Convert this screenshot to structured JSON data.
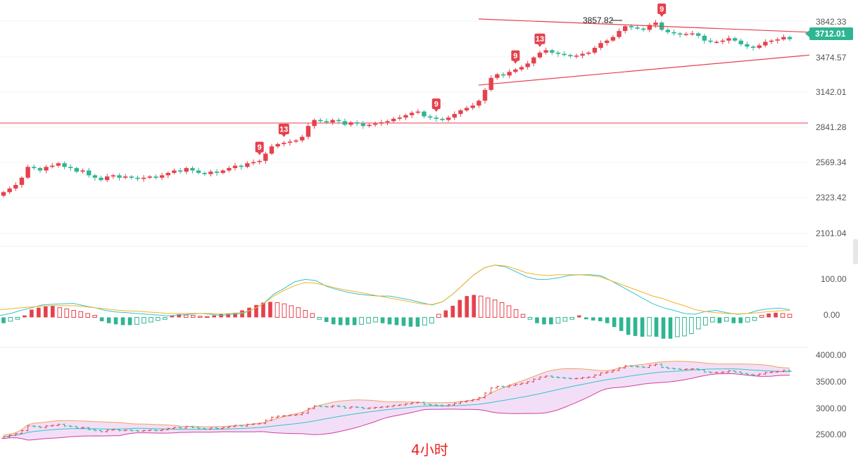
{
  "footer_label": "4小时",
  "colors": {
    "up": "#e5414d",
    "down": "#2fb592",
    "bg": "#ffffff",
    "accent": "#e8221f"
  },
  "chart_data": [
    {
      "type": "candlestick",
      "title": "",
      "price_axis_ticks": [
        "3842.33",
        "3474.57",
        "3142.01",
        "2841.28",
        "2569.34",
        "2323.42",
        "2101.04"
      ],
      "ylim": [
        2050,
        3950
      ],
      "current_price": "3712.01",
      "peak_label": "3857.82",
      "horizontal_level": 2880,
      "triangle": {
        "upper": [
          [
            680,
            3880
          ],
          [
            1150,
            3770
          ]
        ],
        "lower": [
          [
            680,
            3330
          ],
          [
            1150,
            3580
          ]
        ]
      },
      "closes": [
        2440,
        2470,
        2500,
        2560,
        2650,
        2640,
        2620,
        2650,
        2660,
        2680,
        2650,
        2640,
        2610,
        2620,
        2580,
        2560,
        2540,
        2570,
        2580,
        2560,
        2570,
        2560,
        2550,
        2560,
        2570,
        2560,
        2580,
        2600,
        2620,
        2610,
        2640,
        2620,
        2600,
        2590,
        2610,
        2600,
        2620,
        2640,
        2660,
        2650,
        2680,
        2690,
        2700,
        2760,
        2820,
        2840,
        2850,
        2860,
        2870,
        2900,
        2990,
        3040,
        3030,
        3020,
        3040,
        3030,
        3000,
        3020,
        3010,
        2990,
        3000,
        3010,
        3020,
        3030,
        3050,
        3060,
        3080,
        3100,
        3110,
        3070,
        3060,
        3050,
        3040,
        3060,
        3090,
        3120,
        3140,
        3160,
        3200,
        3290,
        3390,
        3420,
        3410,
        3440,
        3460,
        3480,
        3510,
        3560,
        3600,
        3620,
        3600,
        3590,
        3580,
        3570,
        3575,
        3590,
        3600,
        3640,
        3680,
        3700,
        3730,
        3780,
        3820,
        3810,
        3800,
        3790,
        3830,
        3850,
        3790,
        3770,
        3760,
        3750,
        3755,
        3760,
        3740,
        3700,
        3690,
        3690,
        3700,
        3720,
        3700,
        3670,
        3650,
        3640,
        3660,
        3690,
        3700,
        3710,
        3730,
        3712
      ],
      "sequential_count_labels": [
        {
          "index": 42,
          "label": "9",
          "position": "above"
        },
        {
          "index": 46,
          "label": "13",
          "position": "above"
        },
        {
          "index": 71,
          "label": "9",
          "position": "above"
        },
        {
          "index": 84,
          "label": "9",
          "position": "above"
        },
        {
          "index": 88,
          "label": "13",
          "position": "above"
        },
        {
          "index": 108,
          "label": "9",
          "position": "above"
        }
      ]
    },
    {
      "type": "macd",
      "axis_ticks": [
        "100.00",
        "0.00"
      ],
      "ylim": [
        -70,
        175
      ],
      "histogram": [
        -15,
        -10,
        -5,
        5,
        20,
        25,
        28,
        30,
        25,
        22,
        18,
        15,
        10,
        5,
        -10,
        -15,
        -18,
        -20,
        -20,
        -18,
        -15,
        -12,
        -8,
        -5,
        5,
        8,
        6,
        5,
        3,
        2,
        5,
        8,
        10,
        12,
        18,
        25,
        32,
        38,
        40,
        38,
        35,
        30,
        25,
        18,
        10,
        -5,
        -12,
        -18,
        -20,
        -20,
        -20,
        -18,
        -15,
        -12,
        -15,
        -18,
        -20,
        -22,
        -24,
        -24,
        -20,
        -15,
        8,
        18,
        30,
        45,
        55,
        58,
        55,
        50,
        45,
        38,
        30,
        20,
        8,
        -5,
        -15,
        -18,
        -18,
        -15,
        -10,
        -5,
        5,
        -5,
        -8,
        -10,
        -15,
        -25,
        -35,
        -45,
        -48,
        -50,
        -48,
        -50,
        -55,
        -55,
        -50,
        -48,
        -42,
        -30,
        -20,
        -12,
        -15,
        -10,
        -15,
        -15,
        -12,
        -8,
        5,
        10,
        12,
        10,
        8
      ],
      "dif": [
        5,
        10,
        18,
        25,
        32,
        34,
        35,
        36,
        30,
        25,
        18,
        14,
        12,
        10,
        8,
        6,
        4,
        6,
        8,
        10,
        8,
        5,
        8,
        10,
        20,
        35,
        60,
        75,
        92,
        98,
        95,
        80,
        72,
        65,
        60,
        57,
        55,
        55,
        50,
        45,
        38,
        32,
        40,
        60,
        85,
        110,
        128,
        135,
        130,
        118,
        105,
        98,
        98,
        102,
        108,
        110,
        110,
        108,
        95,
        80,
        65,
        50,
        35,
        25,
        18,
        10,
        8,
        15,
        18,
        12,
        8,
        10,
        18,
        22,
        24,
        20
      ],
      "dea": [
        20,
        22,
        25,
        27,
        29,
        30,
        30,
        30,
        28,
        25,
        22,
        19,
        17,
        16,
        14,
        12,
        10,
        10,
        10,
        10,
        10,
        9,
        10,
        12,
        20,
        35,
        55,
        70,
        82,
        90,
        88,
        82,
        75,
        70,
        65,
        60,
        55,
        50,
        45,
        40,
        35,
        33,
        40,
        60,
        85,
        110,
        128,
        135,
        133,
        125,
        115,
        110,
        108,
        110,
        110,
        110,
        108,
        105,
        95,
        85,
        75,
        65,
        55,
        48,
        38,
        30,
        20,
        15,
        12,
        10,
        9,
        10,
        12,
        15,
        17,
        18
      ]
    },
    {
      "type": "bollinger",
      "axis_ticks": [
        "4000.00",
        "3500.00",
        "3000.00",
        "2500.00"
      ],
      "ylim": [
        2320,
        4030
      ]
    }
  ]
}
